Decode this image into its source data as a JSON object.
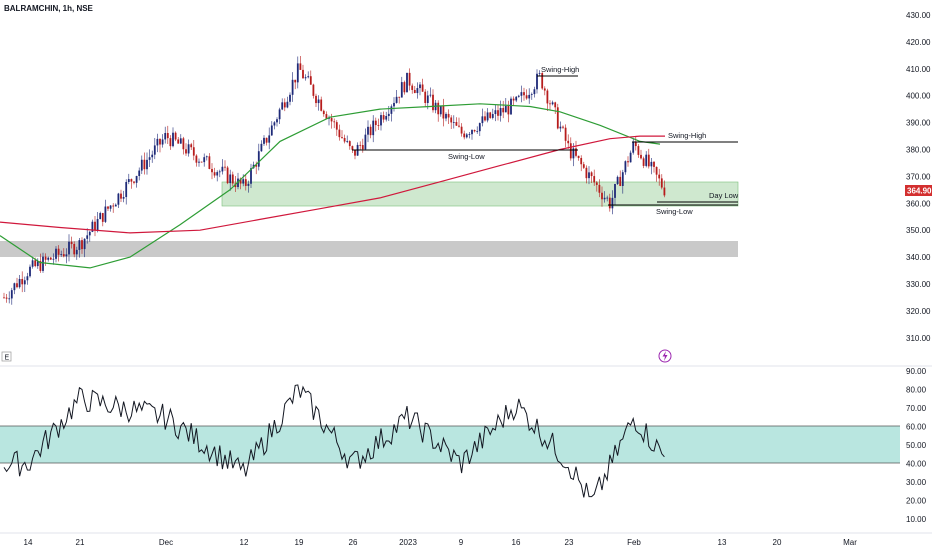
{
  "header": {
    "symbol": "BALRAMCHIN, 1h, NSE"
  },
  "last_price_label": "364.90",
  "colors": {
    "candle_up": "#1e2a78",
    "candle_down": "#b71c1c",
    "sma_green": "#2e9d35",
    "sma_red": "#d0183c",
    "demand_zone": "#cfe8cf",
    "grey_zone": "#c9c9c9",
    "rsi_band": "#b9e6e0",
    "price_tag": "#d32f2f"
  },
  "icons": {
    "scale_badge": "E",
    "lightning": "lightning-icon"
  },
  "chart_data": [
    {
      "type": "candlestick",
      "title": "BALRAMCHIN, 1h, NSE",
      "y_ticks": [
        "430.00",
        "420.00",
        "410.00",
        "400.00",
        "390.00",
        "380.00",
        "370.00",
        "360.00",
        "350.00",
        "340.00",
        "330.00",
        "320.00",
        "310.00"
      ],
      "x_ticks": [
        "14",
        "21",
        "Dec",
        "12",
        "19",
        "26",
        "2023",
        "9",
        "16",
        "23",
        "Feb",
        "13",
        "20",
        "Mar"
      ],
      "ylim": [
        304,
        432
      ],
      "last_price": 364.9,
      "zones": [
        {
          "label": "",
          "from": 358,
          "to": 367,
          "color": "demand"
        },
        {
          "label": "",
          "from": 340,
          "to": 346,
          "color": "grey"
        }
      ],
      "annotations": [
        {
          "text": "Swing-High",
          "y": 407
        },
        {
          "text": "Swing-Low",
          "y": 380
        },
        {
          "text": "Swing-High",
          "y": 383
        },
        {
          "text": "Day Low",
          "y": 360
        },
        {
          "text": "Swing-Low",
          "y": 358.5
        }
      ],
      "key_prices": [
        {
          "date": "Nov 14",
          "value": 335
        },
        {
          "date": "Nov 21",
          "value": 345
        },
        {
          "date": "Dec 1",
          "value": 385
        },
        {
          "date": "Dec 12",
          "value": 366
        },
        {
          "date": "Dec 19",
          "value": 410
        },
        {
          "date": "Dec 26",
          "value": 378
        },
        {
          "date": "Jan 2",
          "value": 406
        },
        {
          "date": "Jan 9",
          "value": 386
        },
        {
          "date": "Jan 16",
          "value": 397
        },
        {
          "date": "Jan 19",
          "value": 407
        },
        {
          "date": "Jan 23",
          "value": 380
        },
        {
          "date": "Jan 27",
          "value": 360
        },
        {
          "date": "Feb 1",
          "value": 382
        },
        {
          "date": "Feb 3",
          "value": 365
        }
      ]
    },
    {
      "type": "line",
      "title": "RSI",
      "y_ticks": [
        "90.00",
        "80.00",
        "70.00",
        "60.00",
        "50.00",
        "40.00",
        "30.00",
        "20.00",
        "10.00"
      ],
      "ylim": [
        0,
        92
      ],
      "band": [
        40,
        60
      ],
      "key_values": [
        {
          "date": "Nov 14",
          "value": 40
        },
        {
          "date": "Nov 21",
          "value": 75
        },
        {
          "date": "Dec 1",
          "value": 65
        },
        {
          "date": "Dec 12",
          "value": 35
        },
        {
          "date": "Dec 19",
          "value": 80
        },
        {
          "date": "Dec 26",
          "value": 40
        },
        {
          "date": "Jan 2",
          "value": 65
        },
        {
          "date": "Jan 9",
          "value": 40
        },
        {
          "date": "Jan 16",
          "value": 72
        },
        {
          "date": "Jan 23",
          "value": 40
        },
        {
          "date": "Jan 27",
          "value": 18
        },
        {
          "date": "Feb 1",
          "value": 65
        },
        {
          "date": "Feb 3",
          "value": 43
        }
      ]
    }
  ]
}
